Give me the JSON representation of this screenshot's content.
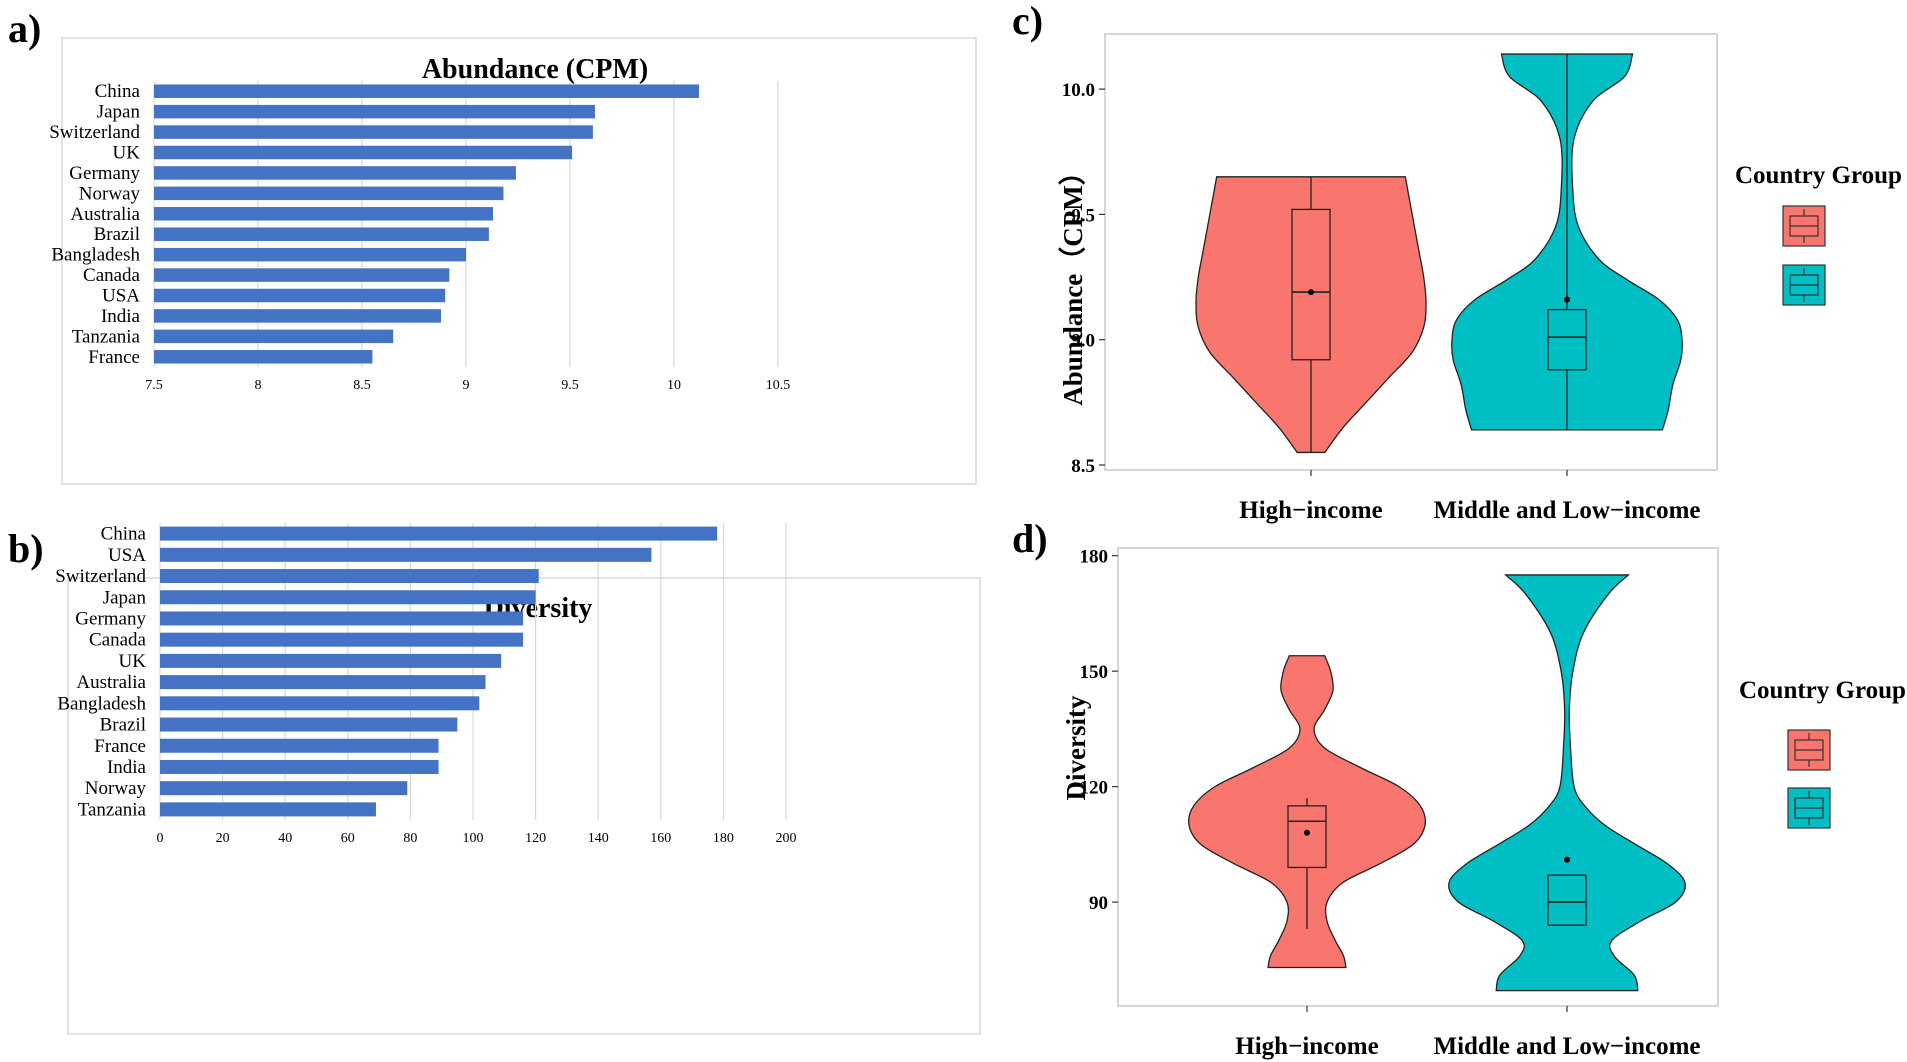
{
  "panel_labels": [
    "a)",
    "b)",
    "c)",
    "d)"
  ],
  "colors": {
    "bar": "#4472C4",
    "high": "#F8766D",
    "low": "#00BFC4",
    "grid": "#d9d9d9",
    "frame": "#d9d9d9"
  },
  "chart_data": [
    {
      "type": "bar",
      "orientation": "horizontal",
      "title": "Abundance (CPM)",
      "categories": [
        "China",
        "Japan",
        "Switzerland",
        "UK",
        "Germany",
        "Norway",
        "Australia",
        "Brazil",
        "Bangladesh",
        "Canada",
        "USA",
        "India",
        "Tanzania",
        "France"
      ],
      "values": [
        10.12,
        9.62,
        9.61,
        9.51,
        9.24,
        9.18,
        9.13,
        9.11,
        9.0,
        8.92,
        8.9,
        8.88,
        8.65,
        8.55
      ],
      "xlim": [
        7.5,
        10.5
      ],
      "xticks": [
        "7.5",
        "8",
        "8.5",
        "9",
        "9.5",
        "10",
        "10.5"
      ],
      "tick_values": [
        7.5,
        8,
        8.5,
        9,
        9.5,
        10,
        10.5
      ]
    },
    {
      "type": "bar",
      "orientation": "horizontal",
      "title": "Diversity",
      "categories": [
        "China",
        "USA",
        "Switzerland",
        "Japan",
        "Germany",
        "Canada",
        "UK",
        "Australia",
        "Bangladesh",
        "Brazil",
        "France",
        "India",
        "Norway",
        "Tanzania"
      ],
      "values": [
        178,
        157,
        121,
        120,
        116,
        116,
        109,
        104,
        102,
        95,
        89,
        89,
        79,
        69
      ],
      "xlim": [
        0,
        200
      ],
      "xticks": [
        "0",
        "20",
        "40",
        "60",
        "80",
        "100",
        "120",
        "140",
        "160",
        "180",
        "200"
      ],
      "tick_values": [
        0,
        20,
        40,
        60,
        80,
        100,
        120,
        140,
        160,
        180,
        200
      ]
    },
    {
      "type": "violin",
      "ylabel": "Abundance（CPM）",
      "categories": [
        "High−income",
        "Middle and Low−income"
      ],
      "ylim": [
        8.48,
        10.22
      ],
      "yticks": [
        "8.5",
        "9.0",
        "9.5",
        "10.0"
      ],
      "tick_values": [
        8.5,
        9.0,
        9.5,
        10.0
      ],
      "legend_title": "Country Group",
      "groups": [
        {
          "name": "High−income",
          "min": 8.55,
          "q1": 8.92,
          "median": 9.19,
          "q3": 9.52,
          "max": 9.65,
          "mean": 9.19,
          "density_y": [
            8.55,
            8.65,
            8.75,
            8.85,
            8.95,
            9.05,
            9.15,
            9.25,
            9.35,
            9.45,
            9.55,
            9.65
          ],
          "density_w": [
            0.12,
            0.28,
            0.48,
            0.68,
            0.88,
            0.98,
            1.0,
            0.98,
            0.94,
            0.9,
            0.86,
            0.82
          ]
        },
        {
          "name": "Middle and Low−income",
          "min": 8.64,
          "q1": 8.88,
          "median": 9.01,
          "q3": 9.12,
          "max": 10.14,
          "mean": 9.16,
          "density_y": [
            8.64,
            8.72,
            8.82,
            8.92,
            9.0,
            9.08,
            9.16,
            9.24,
            9.32,
            9.45,
            9.6,
            9.8,
            9.95,
            10.05,
            10.14
          ],
          "density_w": [
            0.83,
            0.88,
            0.92,
            0.99,
            1.0,
            0.96,
            0.8,
            0.52,
            0.28,
            0.1,
            0.05,
            0.06,
            0.22,
            0.5,
            0.57
          ]
        }
      ]
    },
    {
      "type": "violin",
      "ylabel": "Diversity",
      "categories": [
        "High−income",
        "Middle and Low−income"
      ],
      "ylim": [
        63,
        182
      ],
      "yticks": [
        "90",
        "120",
        "150",
        "180"
      ],
      "tick_values": [
        90,
        120,
        150,
        180
      ],
      "legend_title": "Country Group",
      "groups": [
        {
          "name": "High−income",
          "min": 83,
          "q1": 99,
          "median": 111,
          "q3": 115,
          "max": 117,
          "mean": 108,
          "density_y": [
            73,
            76,
            80,
            85,
            90,
            95,
            100,
            105,
            110,
            115,
            120,
            125,
            130,
            135,
            140,
            145,
            150,
            154
          ],
          "density_w": [
            0.33,
            0.31,
            0.24,
            0.17,
            0.17,
            0.3,
            0.62,
            0.9,
            1.0,
            0.96,
            0.78,
            0.45,
            0.15,
            0.06,
            0.15,
            0.22,
            0.2,
            0.15
          ]
        },
        {
          "name": "Middle and Low−income",
          "min": 84,
          "q1": 84,
          "median": 90,
          "q3": 97,
          "max": 97,
          "mean": 101,
          "density_y": [
            67,
            71,
            76,
            80,
            85,
            90,
            95,
            100,
            105,
            110,
            115,
            120,
            130,
            140,
            150,
            160,
            170,
            175
          ],
          "density_w": [
            0.6,
            0.57,
            0.4,
            0.38,
            0.62,
            0.92,
            1.0,
            0.85,
            0.58,
            0.32,
            0.15,
            0.06,
            0.03,
            0.02,
            0.05,
            0.14,
            0.35,
            0.52
          ]
        }
      ]
    }
  ]
}
